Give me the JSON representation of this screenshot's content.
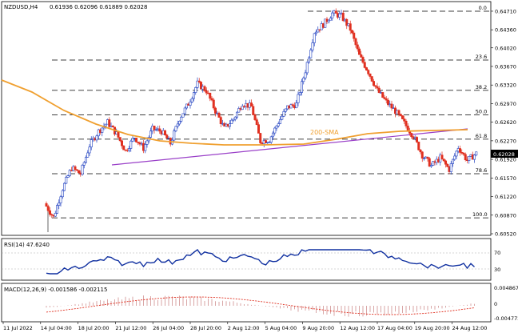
{
  "header": {
    "symbol_tf": "NZDUSD,H4",
    "ohlc": "0.61936 0.62096 0.61889 0.62028"
  },
  "price_axis": {
    "labels": [
      "0.64710",
      "0.64360",
      "0.64020",
      "0.63670",
      "0.63320",
      "0.62970",
      "0.62620",
      "0.62270",
      "0.61920",
      "0.61570",
      "0.61220",
      "0.60870",
      "0.60520"
    ],
    "current_price": "0.62028",
    "ylim": [
      0.6052,
      0.648
    ]
  },
  "time_axis": {
    "labels": [
      "11 Jul 2022",
      "14 Jul 04:00",
      "18 Jul 20:00",
      "21 Jul 12:00",
      "26 Jul 04:00",
      "28 Jul 20:00",
      "2 Aug 12:00",
      "5 Aug 04:00",
      "9 Aug 20:00",
      "12 Aug 12:00",
      "17 Aug 04:00",
      "19 Aug 20:00",
      "24 Aug 12:00"
    ]
  },
  "fibonacci": {
    "levels": [
      {
        "label": "0.0",
        "price": 0.6471
      },
      {
        "label": "23.6",
        "price": 0.6379
      },
      {
        "label": "38.2",
        "price": 0.6322
      },
      {
        "label": "50.0",
        "price": 0.6276
      },
      {
        "label": "61.8",
        "price": 0.623
      },
      {
        "label": "78.6",
        "price": 0.6165
      },
      {
        "label": "100.0",
        "price": 0.6082
      }
    ]
  },
  "annotations": {
    "sma_label": "200-SMA"
  },
  "rsi": {
    "label": "RSI(14) 47.6240",
    "levels": [
      "70",
      "30"
    ]
  },
  "macd": {
    "label": "MACD(12,26,9) -0.001586 -0.002115",
    "axis_labels": [
      "0.004867",
      "0",
      "-0.004772"
    ]
  },
  "chart_data": {
    "type": "candlestick",
    "title": "NZDUSD,H4",
    "close_path": [
      0.6109,
      0.6083,
      0.6137,
      0.6176,
      0.6165,
      0.6218,
      0.6245,
      0.6262,
      0.624,
      0.6208,
      0.6234,
      0.6213,
      0.6249,
      0.6245,
      0.6222,
      0.6269,
      0.6297,
      0.6335,
      0.6321,
      0.6283,
      0.625,
      0.6268,
      0.6298,
      0.6291,
      0.6226,
      0.6229,
      0.6262,
      0.629,
      0.6296,
      0.6359,
      0.6432,
      0.6446,
      0.6467,
      0.6462,
      0.6437,
      0.6387,
      0.6357,
      0.6322,
      0.63,
      0.6283,
      0.626,
      0.6236,
      0.62,
      0.618,
      0.6195,
      0.6173,
      0.6215,
      0.619,
      0.6203
    ],
    "ylim": [
      0.6052,
      0.648
    ],
    "colors": {
      "up": "#2040c0",
      "down": "#e03020",
      "sma": "#f0a030",
      "trend": "#9a40c8",
      "rsi": "#1030a0",
      "macd_signal": "#e03020",
      "macd_hist": "#d09090"
    }
  }
}
